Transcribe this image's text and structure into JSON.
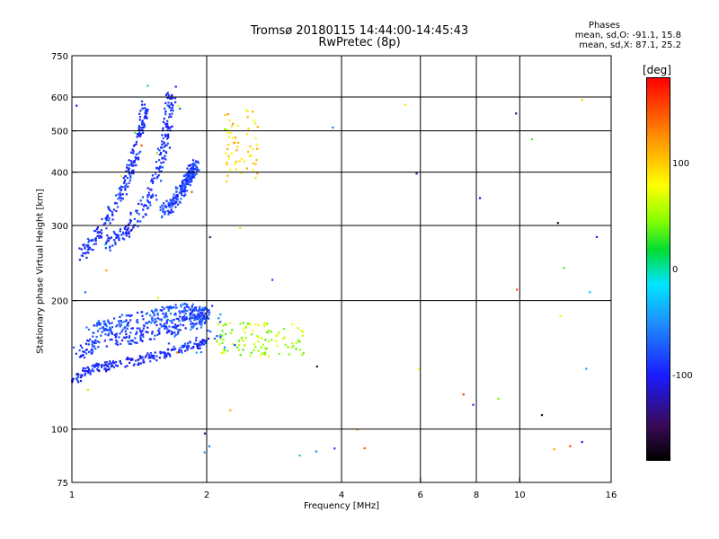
{
  "header": {
    "title_line1": "Tromsø 20180115 14:44:00-14:45:43",
    "title_line2": "RwPretec (8p)",
    "phase_label": "Phases",
    "phase_o": "mean, sd,O: -91.1, 15.8",
    "phase_x": "mean, sd,X:  87.1, 25.2"
  },
  "colorbar": {
    "unit": "[deg]",
    "ticks": [
      "100",
      "0",
      "-100"
    ],
    "tick_values": [
      100,
      0,
      -100
    ],
    "range": [
      -180,
      180
    ]
  },
  "chart_data": {
    "type": "scatter",
    "title": "Tromsø 20180115 14:44:00-14:45:43",
    "subtitle": "RwPretec (8p)",
    "xlabel": "Frequency [MHz]",
    "ylabel": "Stationary phase Virtual Height [km]",
    "xscale": "log",
    "yscale": "log",
    "xlim": [
      1,
      16
    ],
    "ylim": [
      75,
      750
    ],
    "xticks": [
      1,
      2,
      4,
      6,
      8,
      10,
      16
    ],
    "xtick_labels": [
      "1",
      "2",
      "4",
      "6",
      "8",
      "10",
      "16"
    ],
    "x_gridlines": [
      2,
      4,
      6,
      8,
      10
    ],
    "yticks": [
      75,
      100,
      200,
      300,
      400,
      500,
      600,
      750
    ],
    "ytick_labels": [
      "75",
      "100",
      "200",
      "300",
      "400",
      "500",
      "600",
      "750"
    ],
    "y_gridlines": [
      100,
      200,
      300,
      400,
      500,
      600
    ],
    "grid": true,
    "color_encoding": "phase [deg]",
    "clusters": [
      {
        "kind": "trace",
        "f": [
          1.0,
          1.1,
          1.25,
          1.4,
          1.6,
          1.85,
          2.0
        ],
        "h": [
          130,
          138,
          142,
          145,
          150,
          157,
          160
        ],
        "phase": -95,
        "spread": 0.03
      },
      {
        "kind": "trace",
        "f": [
          1.0,
          1.15,
          1.35,
          1.6,
          1.85,
          2.0
        ],
        "h": [
          150,
          160,
          165,
          170,
          180,
          185
        ],
        "phase": -88,
        "spread": 0.05
      },
      {
        "kind": "trace",
        "f": [
          1.1,
          1.3,
          1.55,
          1.8,
          2.0
        ],
        "h": [
          170,
          178,
          185,
          190,
          185
        ],
        "phase": -78,
        "spread": 0.05
      },
      {
        "kind": "trace",
        "f": [
          1.05,
          1.15,
          1.28,
          1.37,
          1.42,
          1.46
        ],
        "h": [
          255,
          290,
          350,
          420,
          500,
          570
        ],
        "phase": -92,
        "spread": 0.04
      },
      {
        "kind": "trace",
        "f": [
          1.2,
          1.35,
          1.5,
          1.58,
          1.63,
          1.67
        ],
        "h": [
          270,
          300,
          350,
          420,
          500,
          620
        ],
        "phase": -90,
        "spread": 0.05
      },
      {
        "kind": "trace",
        "f": [
          1.6,
          1.72,
          1.82,
          1.9
        ],
        "h": [
          320,
          350,
          390,
          420
        ],
        "phase": -85,
        "spread": 0.04
      },
      {
        "kind": "cloud",
        "f": [
          2.2,
          2.6
        ],
        "h": [
          380,
          560
        ],
        "phase": 95,
        "n": 60
      },
      {
        "kind": "cloud",
        "f": [
          2.1,
          3.3
        ],
        "h": [
          148,
          178
        ],
        "phase": 55,
        "n": 110
      },
      {
        "kind": "cloud",
        "f": [
          1.6,
          2.2
        ],
        "h": [
          150,
          195
        ],
        "phase": -70,
        "n": 40
      },
      {
        "kind": "scatter",
        "f": [
          1.0,
          16.0
        ],
        "h": [
          85,
          650
        ],
        "phase": [
          -160,
          170
        ],
        "n": 55
      }
    ]
  }
}
